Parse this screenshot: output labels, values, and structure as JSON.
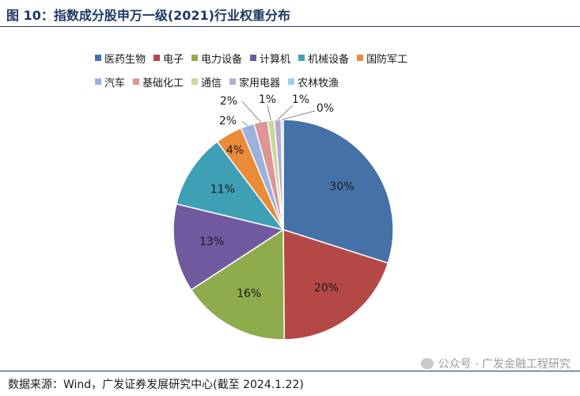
{
  "title": "图 10：指数成分股申万一级(2021)行业权重分布",
  "source": "数据来源：Wind，广发证券发展研究中心(截至 2024.1.22)",
  "watermark": "公众号 · 广发金融工程研究",
  "chart_data": {
    "type": "pie",
    "legend_placement": "top",
    "slices": [
      {
        "label": "医药生物",
        "value": 30,
        "display": "30%",
        "color": "#4472a8"
      },
      {
        "label": "电子",
        "value": 20,
        "display": "20%",
        "color": "#b44846"
      },
      {
        "label": "电力设备",
        "value": 16,
        "display": "16%",
        "color": "#8fac4c"
      },
      {
        "label": "计算机",
        "value": 13,
        "display": "13%",
        "color": "#7159a0"
      },
      {
        "label": "机械设备",
        "value": 11,
        "display": "11%",
        "color": "#3f9fb5"
      },
      {
        "label": "国防军工",
        "value": 4,
        "display": "4%",
        "color": "#e98b3a"
      },
      {
        "label": "汽车",
        "value": 2,
        "display": "2%",
        "color": "#9bb2dc"
      },
      {
        "label": "基础化工",
        "value": 2,
        "display": "2%",
        "color": "#de9594"
      },
      {
        "label": "通信",
        "value": 1,
        "display": "1%",
        "color": "#c6d99b"
      },
      {
        "label": "家用电器",
        "value": 1,
        "display": "1%",
        "color": "#b9a9cf"
      },
      {
        "label": "农林牧渔",
        "value": 0.3,
        "display": "0%",
        "color": "#9dd1e2"
      }
    ]
  }
}
